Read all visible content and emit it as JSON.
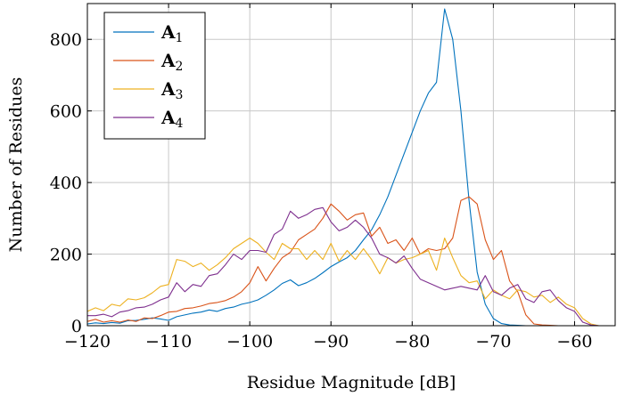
{
  "chart_data": {
    "type": "line",
    "xlabel": "Residue Magnitude [dB]",
    "ylabel": "Number of Residues",
    "xlim": [
      -120,
      -55
    ],
    "ylim": [
      0,
      900
    ],
    "xticks": [
      -120,
      -110,
      -100,
      -90,
      -80,
      -70,
      -60
    ],
    "xtick_labels": [
      "−120",
      "−110",
      "−100",
      "−90",
      "−80",
      "−70",
      "−60"
    ],
    "yticks": [
      0,
      200,
      400,
      600,
      800
    ],
    "ytick_labels": [
      "0",
      "200",
      "400",
      "600",
      "800"
    ],
    "grid": true,
    "legend_position": "top-left",
    "series": [
      {
        "name": "A",
        "sub": "1",
        "color": "#0072bd",
        "x": [
          -120,
          -119,
          -118,
          -117,
          -116,
          -115,
          -114,
          -113,
          -112,
          -111,
          -110,
          -109,
          -108,
          -107,
          -106,
          -105,
          -104,
          -103,
          -102,
          -101,
          -100,
          -99,
          -98,
          -97,
          -96,
          -95,
          -94,
          -93,
          -92,
          -91,
          -90,
          -89,
          -88,
          -87,
          -86,
          -85,
          -84,
          -83,
          -82,
          -81,
          -80,
          -79,
          -78,
          -77,
          -76,
          -75,
          -74,
          -73,
          -72,
          -71,
          -70,
          -69,
          -68,
          -67,
          -66,
          -65,
          -64,
          -63,
          -62,
          -61,
          -60,
          -59,
          -58,
          -57,
          -56,
          -55
        ],
        "y": [
          5,
          8,
          6,
          9,
          7,
          14,
          15,
          18,
          22,
          19,
          15,
          25,
          30,
          35,
          38,
          44,
          40,
          48,
          52,
          60,
          65,
          72,
          85,
          100,
          118,
          128,
          112,
          120,
          132,
          148,
          165,
          178,
          190,
          210,
          240,
          268,
          310,
          360,
          420,
          480,
          540,
          600,
          650,
          680,
          885,
          800,
          600,
          350,
          150,
          60,
          20,
          6,
          2,
          1,
          0,
          0,
          0,
          0,
          0,
          0,
          0,
          0,
          0,
          0,
          0,
          0
        ]
      },
      {
        "name": "A",
        "sub": "2",
        "color": "#d95319",
        "x": [
          -120,
          -119,
          -118,
          -117,
          -116,
          -115,
          -114,
          -113,
          -112,
          -111,
          -110,
          -109,
          -108,
          -107,
          -106,
          -105,
          -104,
          -103,
          -102,
          -101,
          -100,
          -99,
          -98,
          -97,
          -96,
          -95,
          -94,
          -93,
          -92,
          -91,
          -90,
          -89,
          -88,
          -87,
          -86,
          -85,
          -84,
          -83,
          -82,
          -81,
          -80,
          -79,
          -78,
          -77,
          -76,
          -75,
          -74,
          -73,
          -72,
          -71,
          -70,
          -69,
          -68,
          -67,
          -66,
          -65,
          -64,
          -63,
          -62,
          -61,
          -60,
          -59,
          -58,
          -57,
          -56,
          -55
        ],
        "y": [
          12,
          18,
          10,
          14,
          10,
          16,
          12,
          22,
          20,
          28,
          38,
          40,
          48,
          50,
          55,
          62,
          65,
          70,
          80,
          95,
          120,
          165,
          125,
          160,
          190,
          205,
          240,
          255,
          270,
          300,
          340,
          320,
          295,
          310,
          315,
          250,
          275,
          230,
          240,
          210,
          245,
          200,
          215,
          210,
          215,
          245,
          350,
          360,
          340,
          240,
          185,
          210,
          125,
          95,
          30,
          5,
          2,
          1,
          0,
          0,
          0,
          0,
          0,
          0,
          0,
          0
        ]
      },
      {
        "name": "A",
        "sub": "3",
        "color": "#edb120",
        "x": [
          -120,
          -119,
          -118,
          -117,
          -116,
          -115,
          -114,
          -113,
          -112,
          -111,
          -110,
          -109,
          -108,
          -107,
          -106,
          -105,
          -104,
          -103,
          -102,
          -101,
          -100,
          -99,
          -98,
          -97,
          -96,
          -95,
          -94,
          -93,
          -92,
          -91,
          -90,
          -89,
          -88,
          -87,
          -86,
          -85,
          -84,
          -83,
          -82,
          -81,
          -80,
          -79,
          -78,
          -77,
          -76,
          -75,
          -74,
          -73,
          -72,
          -71,
          -70,
          -69,
          -68,
          -67,
          -66,
          -65,
          -64,
          -63,
          -62,
          -61,
          -60,
          -59,
          -58,
          -57,
          -56,
          -55
        ],
        "y": [
          40,
          50,
          42,
          60,
          55,
          75,
          72,
          78,
          92,
          110,
          115,
          185,
          180,
          165,
          175,
          155,
          170,
          190,
          215,
          230,
          245,
          230,
          205,
          185,
          230,
          215,
          215,
          185,
          210,
          185,
          230,
          180,
          210,
          185,
          215,
          185,
          145,
          190,
          175,
          185,
          190,
          200,
          210,
          155,
          245,
          190,
          140,
          120,
          125,
          75,
          100,
          85,
          75,
          100,
          95,
          80,
          85,
          65,
          80,
          60,
          50,
          20,
          5,
          0,
          0,
          0
        ]
      },
      {
        "name": "A",
        "sub": "4",
        "color": "#7e2f8e",
        "x": [
          -120,
          -119,
          -118,
          -117,
          -116,
          -115,
          -114,
          -113,
          -112,
          -111,
          -110,
          -109,
          -108,
          -107,
          -106,
          -105,
          -104,
          -103,
          -102,
          -101,
          -100,
          -99,
          -98,
          -97,
          -96,
          -95,
          -94,
          -93,
          -92,
          -91,
          -90,
          -89,
          -88,
          -87,
          -86,
          -85,
          -84,
          -83,
          -82,
          -81,
          -80,
          -79,
          -78,
          -77,
          -76,
          -75,
          -74,
          -73,
          -72,
          -71,
          -70,
          -69,
          -68,
          -67,
          -66,
          -65,
          -64,
          -63,
          -62,
          -61,
          -60,
          -59,
          -58,
          -57,
          -56,
          -55
        ],
        "y": [
          28,
          28,
          32,
          25,
          38,
          42,
          50,
          52,
          60,
          72,
          80,
          120,
          95,
          115,
          110,
          140,
          145,
          170,
          200,
          185,
          210,
          210,
          205,
          255,
          270,
          320,
          300,
          310,
          325,
          330,
          290,
          265,
          275,
          295,
          275,
          245,
          200,
          190,
          175,
          195,
          160,
          130,
          120,
          110,
          100,
          105,
          110,
          105,
          100,
          140,
          95,
          85,
          105,
          115,
          75,
          65,
          95,
          100,
          70,
          50,
          40,
          10,
          2,
          0,
          0,
          0
        ]
      }
    ]
  }
}
